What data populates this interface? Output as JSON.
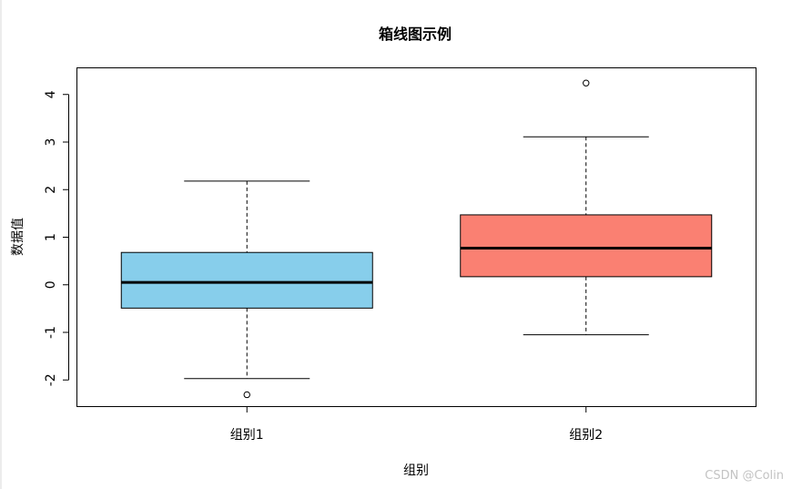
{
  "chart_data": {
    "type": "box",
    "title": "箱线图示例",
    "xlabel": "组别",
    "ylabel": "数据值",
    "ylim": [
      -2.55,
      4.55
    ],
    "yticks": [
      -2,
      -1,
      0,
      1,
      2,
      3,
      4
    ],
    "ytick_labels": [
      "-2",
      "-1",
      "0",
      "1",
      "2",
      "3",
      "4"
    ],
    "grid": false,
    "legend": "none",
    "groups": [
      {
        "category": "组别1",
        "color": "#87CEEB",
        "whisker_low": -1.97,
        "q1": -0.49,
        "median": 0.05,
        "q3": 0.68,
        "whisker_high": 2.18,
        "outliers": [
          -2.31
        ]
      },
      {
        "category": "组别2",
        "color": "#FA8072",
        "whisker_low": -1.05,
        "q1": 0.17,
        "median": 0.77,
        "q3": 1.47,
        "whisker_high": 3.11,
        "outliers": [
          4.24
        ]
      }
    ]
  },
  "watermark": "CSDN @Colin"
}
